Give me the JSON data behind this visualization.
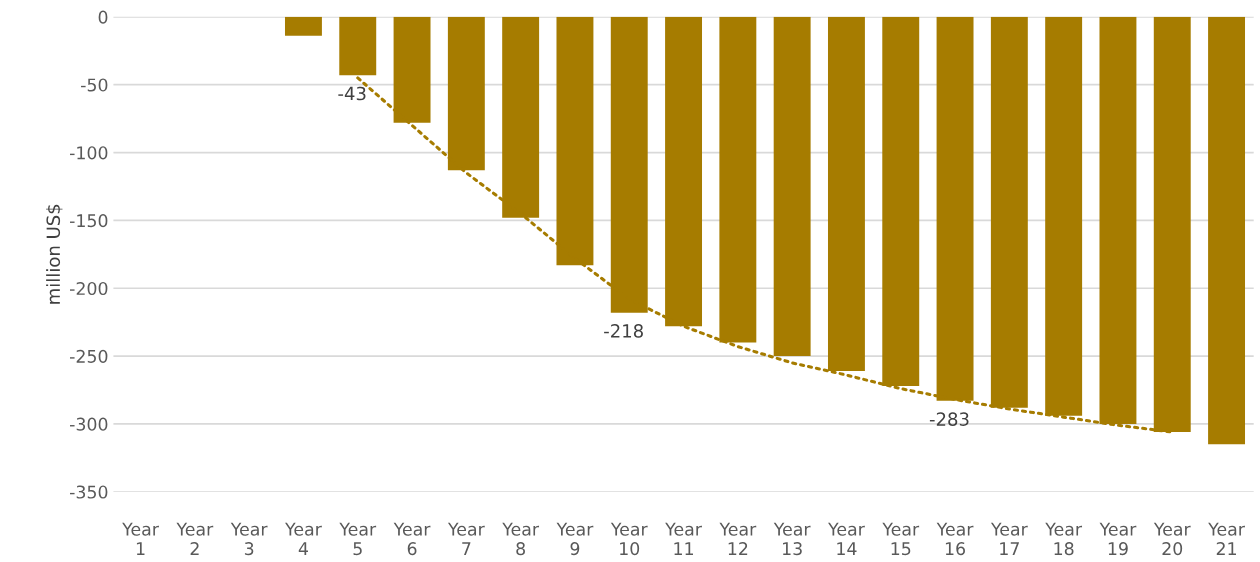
{
  "chart_data": {
    "type": "bar",
    "ylabel": "million US$",
    "categories": [
      "Year 1",
      "Year 2",
      "Year 3",
      "Year 4",
      "Year 5",
      "Year 6",
      "Year 7",
      "Year 8",
      "Year 9",
      "Year 10",
      "Year 11",
      "Year 12",
      "Year 13",
      "Year 14",
      "Year 15",
      "Year 16",
      "Year 17",
      "Year 18",
      "Year 19",
      "Year 20",
      "Year 21"
    ],
    "series": [
      {
        "color": "#a67c00",
        "values": [
          null,
          null,
          null,
          -14,
          -43,
          -78,
          -113,
          -148,
          -183,
          -218,
          -228,
          -240,
          -250,
          -261,
          -272,
          -283,
          -288,
          -294,
          -300,
          -306,
          -315
        ],
        "value_labels": [
          null,
          null,
          null,
          null,
          "-43",
          null,
          null,
          null,
          null,
          "-218",
          null,
          null,
          null,
          null,
          null,
          "-283",
          null,
          null,
          null,
          null,
          null
        ]
      },
      {
        "type": "line",
        "color": "#a67c00",
        "line_style": "dotted",
        "marker": "none",
        "values": [
          null,
          null,
          null,
          null,
          -45,
          -80,
          -115,
          -145,
          -178,
          -208,
          -228,
          -243,
          -255,
          -264,
          -274,
          -282,
          -289,
          -295,
          -301,
          -306,
          null
        ]
      }
    ],
    "ylim": [
      -350,
      0
    ],
    "yticks": [
      -350,
      -300,
      -250,
      -200,
      -150,
      -100,
      -50,
      0
    ],
    "grid": "y",
    "legend": false
  }
}
